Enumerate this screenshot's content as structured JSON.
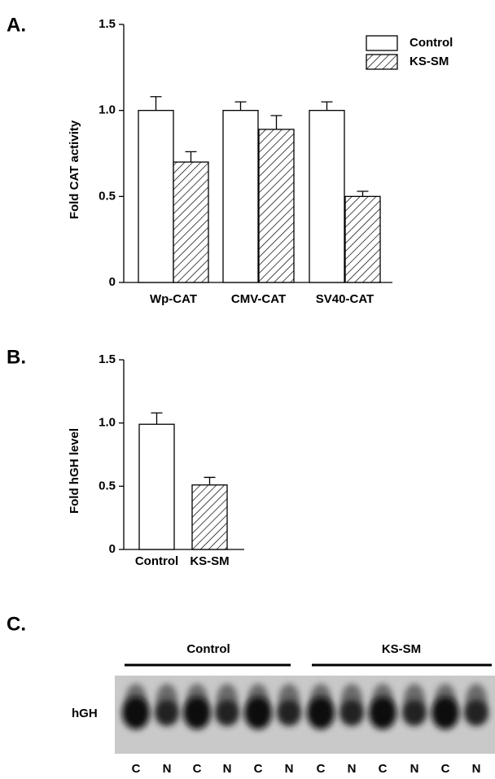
{
  "panels": [
    "A.",
    "B.",
    "C."
  ],
  "chart_data": [
    {
      "type": "bar",
      "y_label": "Fold CAT activity",
      "categories": [
        "Wp-CAT",
        "CMV-CAT",
        "SV40-CAT"
      ],
      "series": [
        {
          "name": "Control",
          "color": "#ffffff",
          "hatch": false,
          "values": [
            1.0,
            1.0,
            1.0
          ],
          "errors": [
            0.08,
            0.05,
            0.05
          ]
        },
        {
          "name": "KS-SM",
          "color": "#ffffff",
          "hatch": true,
          "values": [
            0.7,
            0.89,
            0.5
          ],
          "errors": [
            0.06,
            0.08,
            0.03
          ]
        }
      ],
      "ylim": [
        0,
        1.5
      ],
      "yticks": [
        0,
        0.5,
        {
          "value": 1,
          "label": "1.0"
        },
        1.5
      ],
      "legend": "top-right"
    },
    {
      "type": "bar",
      "y_label": "Fold hGH level",
      "categories": [
        "Control",
        "KS-SM"
      ],
      "hatch": [
        false,
        true
      ],
      "values": [
        0.99,
        0.51
      ],
      "errors": [
        0.09,
        0.06
      ],
      "ylim": [
        0,
        1.5
      ],
      "yticks": [
        0,
        0.5,
        {
          "value": 1,
          "label": "1.0"
        },
        1.5
      ]
    }
  ],
  "blot": {
    "groups": [
      "Control",
      "KS-SM"
    ],
    "band_label": "hGH",
    "lanes": [
      "C",
      "N",
      "C",
      "N",
      "C",
      "N",
      "C",
      "N",
      "C",
      "N",
      "C",
      "N"
    ]
  }
}
